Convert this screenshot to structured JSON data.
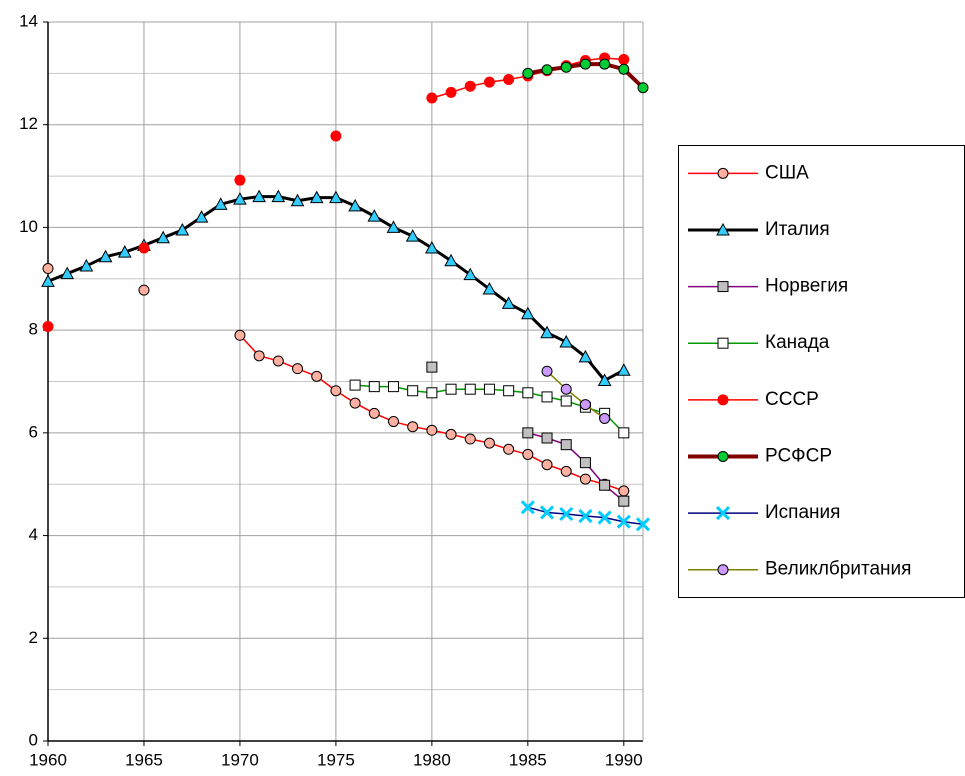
{
  "chart_data": {
    "type": "line",
    "x": [
      1960,
      1961,
      1962,
      1963,
      1964,
      1965,
      1966,
      1967,
      1968,
      1969,
      1970,
      1971,
      1972,
      1973,
      1974,
      1975,
      1976,
      1977,
      1978,
      1979,
      1980,
      1981,
      1982,
      1983,
      1984,
      1985,
      1986,
      1987,
      1988,
      1989,
      1990,
      1991
    ],
    "xlim": [
      1960,
      1991
    ],
    "xticks": [
      1960,
      1965,
      1970,
      1975,
      1980,
      1985,
      1990
    ],
    "ylim": [
      0,
      14
    ],
    "yticks": [
      0,
      2,
      4,
      6,
      8,
      10,
      12,
      14
    ],
    "yminor_ticks": [
      1,
      3,
      5,
      7,
      9,
      11,
      13
    ],
    "grid": true,
    "legend": "right",
    "series": [
      {
        "name": "США",
        "color": "#ff0000",
        "marker": "circle",
        "marker_color": "#ffb0a0",
        "line_width": 1.5,
        "values": [
          9.2,
          null,
          null,
          null,
          null,
          8.78,
          null,
          null,
          null,
          null,
          7.9,
          7.5,
          7.4,
          7.25,
          7.1,
          6.82,
          6.58,
          6.38,
          6.22,
          6.12,
          6.05,
          5.97,
          5.88,
          5.8,
          5.68,
          5.58,
          5.38,
          5.25,
          5.1,
          5.0,
          4.87,
          null
        ]
      },
      {
        "name": "Италия",
        "color": "#000000",
        "marker": "triangle",
        "marker_color": "#33ccff",
        "line_width": 3,
        "values": [
          8.95,
          9.1,
          9.25,
          9.43,
          9.52,
          9.65,
          9.8,
          9.95,
          10.2,
          10.45,
          10.55,
          10.6,
          10.6,
          10.52,
          10.58,
          10.58,
          10.42,
          10.22,
          10.0,
          9.83,
          9.6,
          9.35,
          9.08,
          8.8,
          8.52,
          8.32,
          7.95,
          7.77,
          7.48,
          7.02,
          7.22,
          null
        ]
      },
      {
        "name": "Норвегия",
        "color": "#800080",
        "marker": "square",
        "marker_color": "#c0c0c0",
        "line_width": 1.5,
        "values": [
          null,
          null,
          null,
          null,
          null,
          null,
          null,
          null,
          null,
          null,
          null,
          null,
          null,
          null,
          null,
          null,
          null,
          null,
          null,
          null,
          7.28,
          null,
          null,
          null,
          null,
          6.0,
          5.9,
          5.77,
          5.42,
          4.98,
          4.67,
          null
        ]
      },
      {
        "name": "Канада",
        "color": "#009900",
        "marker": "square",
        "marker_color": "#ffffff",
        "line_width": 1.5,
        "values": [
          null,
          null,
          null,
          null,
          null,
          null,
          null,
          null,
          null,
          null,
          null,
          null,
          null,
          null,
          null,
          null,
          6.93,
          6.9,
          6.9,
          6.82,
          6.78,
          6.85,
          6.85,
          6.85,
          6.82,
          6.78,
          6.7,
          6.62,
          6.5,
          6.38,
          6.0,
          null
        ]
      },
      {
        "name": "СССР",
        "color": "#ff0000",
        "marker": "circle",
        "marker_color": "#ff0000",
        "line_width": 1.5,
        "values": [
          8.07,
          null,
          null,
          null,
          null,
          9.6,
          null,
          null,
          null,
          null,
          10.92,
          null,
          null,
          null,
          null,
          11.78,
          null,
          null,
          null,
          null,
          12.52,
          12.63,
          12.75,
          12.83,
          12.88,
          12.95,
          13.05,
          13.15,
          13.25,
          13.3,
          13.27,
          null
        ]
      },
      {
        "name": "РСФСР",
        "color": "#800000",
        "marker": "circle",
        "marker_color": "#00cc33",
        "line_width": 4,
        "values": [
          null,
          null,
          null,
          null,
          null,
          null,
          null,
          null,
          null,
          null,
          null,
          null,
          null,
          null,
          null,
          null,
          null,
          null,
          null,
          null,
          null,
          null,
          null,
          null,
          null,
          13.0,
          13.07,
          13.12,
          13.18,
          13.18,
          13.08,
          12.72
        ]
      },
      {
        "name": "Испания",
        "color": "#000080",
        "marker": "x",
        "marker_color": "#00ccff",
        "line_width": 1.5,
        "values": [
          null,
          null,
          null,
          null,
          null,
          null,
          null,
          null,
          null,
          null,
          null,
          null,
          null,
          null,
          null,
          null,
          null,
          null,
          null,
          null,
          null,
          null,
          null,
          null,
          null,
          4.55,
          4.45,
          4.42,
          4.38,
          4.35,
          4.27,
          4.22
        ]
      },
      {
        "name": "Великлбритания",
        "color": "#808000",
        "marker": "circle",
        "marker_color": "#cc99ff",
        "line_width": 1.5,
        "values": [
          null,
          null,
          null,
          null,
          null,
          null,
          null,
          null,
          null,
          null,
          null,
          null,
          null,
          null,
          null,
          null,
          null,
          null,
          null,
          null,
          null,
          null,
          null,
          null,
          null,
          null,
          7.2,
          6.85,
          6.55,
          6.28,
          null,
          null
        ]
      }
    ]
  }
}
